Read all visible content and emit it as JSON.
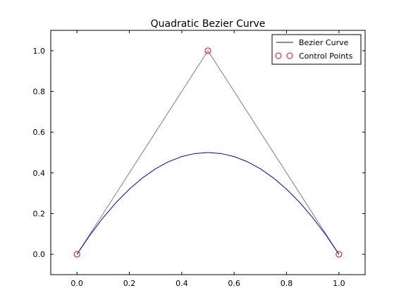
{
  "chart_data": {
    "type": "line",
    "title": "Quadratic Bezier Curve",
    "xlabel": "",
    "ylabel": "",
    "xlim": [
      -0.1,
      1.1
    ],
    "ylim": [
      -0.1,
      1.1
    ],
    "x_ticks": [
      0.0,
      0.2,
      0.4,
      0.6,
      0.8,
      1.0
    ],
    "x_tick_labels": [
      "0.0",
      "0.2",
      "0.4",
      "0.6",
      "0.8",
      "1.0"
    ],
    "y_ticks": [
      0.0,
      0.2,
      0.4,
      0.6,
      0.8,
      1.0
    ],
    "y_tick_labels": [
      "0.0",
      "0.2",
      "0.4",
      "0.6",
      "0.8",
      "1.0"
    ],
    "grid": false,
    "legend_position": "top-right",
    "series": [
      {
        "name": "Bezier Curve",
        "kind": "line",
        "color": "#0000ff",
        "x": [
          0.0,
          0.05,
          0.1,
          0.15,
          0.2,
          0.25,
          0.3,
          0.35,
          0.4,
          0.45,
          0.5,
          0.55,
          0.6,
          0.65,
          0.7,
          0.75,
          0.8,
          0.85,
          0.9,
          0.95,
          1.0
        ],
        "y": [
          0.0,
          0.095,
          0.18,
          0.255,
          0.32,
          0.375,
          0.42,
          0.455,
          0.48,
          0.495,
          0.5,
          0.495,
          0.48,
          0.455,
          0.42,
          0.375,
          0.32,
          0.255,
          0.18,
          0.095,
          0.0
        ]
      },
      {
        "name": "Control Points",
        "kind": "markers",
        "marker": "open-circle",
        "color": "#ff0000",
        "x": [
          0.0,
          0.5,
          1.0
        ],
        "y": [
          0.0,
          1.0,
          0.0
        ]
      },
      {
        "kind": "line",
        "color": "#808080",
        "x": [
          0.0,
          0.5,
          1.0
        ],
        "y": [
          0.0,
          1.0,
          0.0
        ]
      }
    ]
  }
}
